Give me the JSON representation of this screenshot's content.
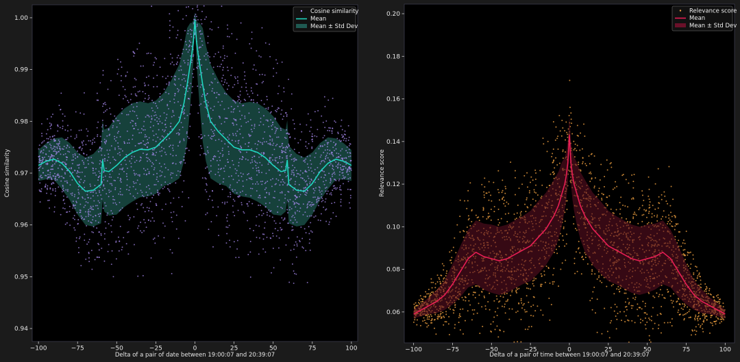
{
  "colors": {
    "figure_bg": "#1b1b1b",
    "axes_bg": "#000000",
    "left_points": "#a98bf0",
    "left_mean": "#20d6c0",
    "left_band": "#1f5a52",
    "right_points": "#f0a040",
    "right_mean": "#e81e55",
    "right_band": "#5a0f22"
  },
  "chart_data": [
    {
      "type": "scatter",
      "title": "",
      "xlabel": "Delta of a pair of date between 19:00:07 and 20:39:07",
      "ylabel": "Cosine similarity",
      "xlim": [
        -104,
        104
      ],
      "ylim": [
        0.9375,
        1.0025
      ],
      "xticks": [
        -100,
        -75,
        -50,
        -25,
        0,
        25,
        50,
        75,
        100
      ],
      "xtick_labels": [
        "−100",
        "−75",
        "−50",
        "−25",
        "0",
        "25",
        "50",
        "75",
        "100"
      ],
      "yticks": [
        0.94,
        0.95,
        0.96,
        0.97,
        0.98,
        0.99,
        1.0
      ],
      "ytick_labels": [
        "0.94",
        "0.95",
        "0.96",
        "0.97",
        "0.98",
        "0.99",
        "1.00"
      ],
      "legend": {
        "placement": "top-right",
        "entries": [
          "Cosine similarity",
          "Mean",
          "Mean ± Std Dev"
        ]
      },
      "mean": {
        "x": [
          -100,
          -95,
          -90,
          -85,
          -80,
          -75,
          -70,
          -65,
          -60,
          -59,
          -58,
          -55,
          -50,
          -45,
          -40,
          -35,
          -30,
          -25,
          -20,
          -15,
          -10,
          -7,
          -5,
          -3,
          -2,
          -1,
          0,
          1,
          2,
          3,
          5,
          7,
          10,
          15,
          20,
          25,
          30,
          35,
          40,
          45,
          50,
          55,
          58,
          59,
          60,
          65,
          70,
          75,
          80,
          85,
          90,
          95,
          100
        ],
        "y": [
          0.9715,
          0.9723,
          0.9727,
          0.9719,
          0.9703,
          0.968,
          0.9665,
          0.9667,
          0.9678,
          0.9725,
          0.9705,
          0.9703,
          0.9715,
          0.973,
          0.974,
          0.9746,
          0.9745,
          0.975,
          0.9765,
          0.978,
          0.98,
          0.9835,
          0.987,
          0.991,
          0.993,
          0.9955,
          0.9995,
          0.9955,
          0.993,
          0.991,
          0.987,
          0.9835,
          0.98,
          0.978,
          0.9765,
          0.975,
          0.9745,
          0.9745,
          0.974,
          0.973,
          0.9715,
          0.9703,
          0.9705,
          0.9725,
          0.9678,
          0.9667,
          0.9665,
          0.968,
          0.9703,
          0.9719,
          0.9727,
          0.9723,
          0.9715
        ]
      },
      "std": {
        "x": [
          -100,
          -95,
          -90,
          -85,
          -80,
          -75,
          -70,
          -65,
          -60,
          -55,
          -50,
          -45,
          -40,
          -30,
          -20,
          -15,
          -10,
          -7,
          -5,
          -3,
          -1,
          0,
          1,
          3,
          5,
          7,
          10,
          15,
          20,
          30,
          40,
          45,
          50,
          55,
          60,
          65,
          70,
          75,
          80,
          85,
          90,
          95,
          100
        ],
        "y": [
          0.003,
          0.0035,
          0.004,
          0.005,
          0.0055,
          0.006,
          0.0065,
          0.007,
          0.0075,
          0.0085,
          0.0095,
          0.0095,
          0.0095,
          0.009,
          0.009,
          0.01,
          0.011,
          0.0112,
          0.011,
          0.008,
          0.004,
          0.0015,
          0.004,
          0.008,
          0.011,
          0.0112,
          0.011,
          0.01,
          0.009,
          0.009,
          0.0095,
          0.0095,
          0.0095,
          0.0085,
          0.0075,
          0.007,
          0.0065,
          0.006,
          0.0055,
          0.005,
          0.004,
          0.0035,
          0.003
        ]
      },
      "scatter_sigma_scale": 1.4,
      "scatter_seed": 17
    },
    {
      "type": "scatter",
      "title": "",
      "xlabel": "Delta of a pair of time between 19:00:07 and 20:39:07",
      "ylabel": "Relevance score",
      "xlim": [
        -106,
        106
      ],
      "ylim": [
        0.0455,
        0.2045
      ],
      "xticks": [
        -100,
        -75,
        -50,
        -25,
        0,
        25,
        50,
        75,
        100
      ],
      "xtick_labels": [
        "−100",
        "−75",
        "−50",
        "−25",
        "0",
        "25",
        "50",
        "75",
        "100"
      ],
      "yticks": [
        0.06,
        0.08,
        0.1,
        0.12,
        0.14,
        0.16,
        0.18,
        0.2
      ],
      "ytick_labels": [
        "0.06",
        "0.08",
        "0.10",
        "0.12",
        "0.14",
        "0.16",
        "0.18",
        "0.20"
      ],
      "legend": {
        "placement": "top-right",
        "entries": [
          "Relevance score",
          "Mean",
          "Mean ± Std Dev"
        ]
      },
      "mean": {
        "x": [
          -100,
          -95,
          -90,
          -85,
          -80,
          -75,
          -70,
          -65,
          -60,
          -55,
          -50,
          -45,
          -40,
          -35,
          -30,
          -25,
          -20,
          -15,
          -10,
          -7,
          -5,
          -3,
          -2,
          -1,
          0,
          1,
          2,
          3,
          5,
          7,
          10,
          15,
          20,
          25,
          30,
          35,
          40,
          45,
          50,
          55,
          60,
          65,
          70,
          75,
          80,
          85,
          90,
          95,
          100
        ],
        "y": [
          0.059,
          0.061,
          0.063,
          0.065,
          0.068,
          0.073,
          0.079,
          0.085,
          0.088,
          0.086,
          0.085,
          0.084,
          0.085,
          0.087,
          0.089,
          0.091,
          0.095,
          0.099,
          0.105,
          0.11,
          0.115,
          0.12,
          0.124,
          0.13,
          0.143,
          0.13,
          0.124,
          0.12,
          0.115,
          0.11,
          0.105,
          0.099,
          0.095,
          0.091,
          0.089,
          0.087,
          0.085,
          0.084,
          0.085,
          0.086,
          0.088,
          0.085,
          0.079,
          0.073,
          0.068,
          0.065,
          0.063,
          0.061,
          0.059
        ]
      },
      "std": {
        "x": [
          -100,
          -90,
          -80,
          -70,
          -60,
          -50,
          -40,
          -30,
          -20,
          -10,
          -5,
          0,
          5,
          10,
          20,
          30,
          40,
          50,
          60,
          70,
          80,
          90,
          100
        ],
        "y": [
          0.002,
          0.004,
          0.007,
          0.012,
          0.015,
          0.016,
          0.016,
          0.016,
          0.017,
          0.017,
          0.015,
          0.009,
          0.015,
          0.017,
          0.017,
          0.016,
          0.016,
          0.016,
          0.015,
          0.012,
          0.007,
          0.004,
          0.002
        ]
      },
      "scatter_sigma_scale": 1.5,
      "scatter_seed": 29
    }
  ]
}
